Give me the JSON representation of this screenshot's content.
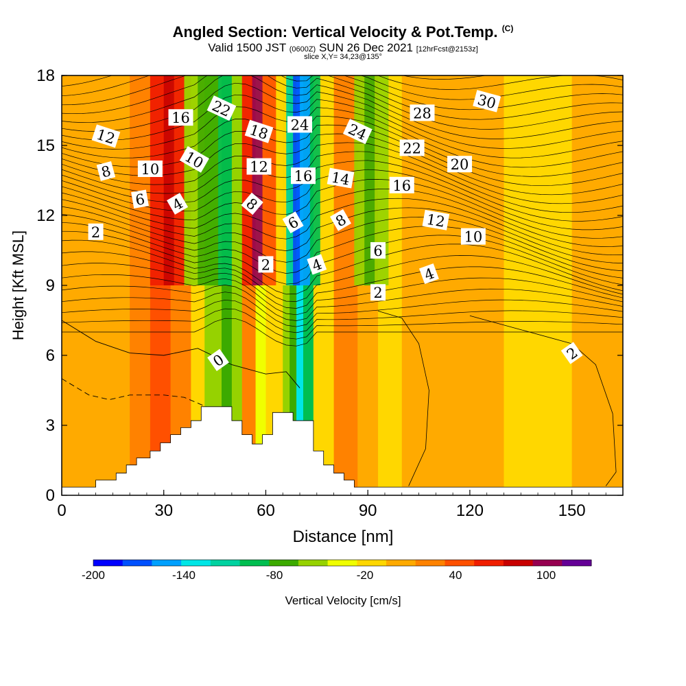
{
  "header": {
    "title_main": "Angled Section: Vertical Velocity & Pot.Temp.",
    "title_copyright": "(C)",
    "line2_a": "Valid 1500 JST",
    "line2_b": "(0600Z)",
    "line2_c": "SUN 26 Dec 2021",
    "line2_d": "[12hrFcst@2153z]",
    "line3": "slice X,Y= 34,23@135°"
  },
  "chart_data": {
    "type": "heatmap",
    "xlabel": "Distance [nm]",
    "ylabel": "Height [Kft MSL]",
    "xlim": [
      0,
      165
    ],
    "ylim": [
      0,
      18
    ],
    "xticks": [
      "0",
      "30",
      "60",
      "90",
      "120",
      "150"
    ],
    "xtick_values": [
      0,
      30,
      60,
      90,
      120,
      150
    ],
    "yticks": [
      "0",
      "3",
      "6",
      "9",
      "12",
      "15",
      "18"
    ],
    "ytick_values": [
      0,
      3,
      6,
      9,
      12,
      15,
      18
    ],
    "colorbar": {
      "label": "Vertical Velocity [cm/s]",
      "tick_labels": [
        "-200",
        "-140",
        "-80",
        "-20",
        "40",
        "100"
      ],
      "tick_values": [
        -200,
        -140,
        -80,
        -20,
        40,
        100
      ],
      "min": -200,
      "max": 130,
      "colors": [
        "#0000ff",
        "#0050ff",
        "#00a0ff",
        "#00e6e6",
        "#00d2a0",
        "#00be50",
        "#3caa00",
        "#96d200",
        "#f0ff00",
        "#ffd700",
        "#ffaa00",
        "#ff8200",
        "#ff5000",
        "#f01e00",
        "#c80000",
        "#960050",
        "#640096"
      ]
    },
    "velocity_bands": [
      {
        "x": 0,
        "w": 20,
        "c": "#ffaa00"
      },
      {
        "x": 20,
        "w": 6,
        "c": "#ff8200"
      },
      {
        "x": 26,
        "w": 6,
        "c": "#ff5000"
      },
      {
        "x": 32,
        "w": 6,
        "c": "#ff8200"
      },
      {
        "x": 38,
        "w": 4,
        "c": "#ffd700"
      },
      {
        "x": 42,
        "w": 5,
        "c": "#96d200"
      },
      {
        "x": 47,
        "w": 3,
        "c": "#3caa00"
      },
      {
        "x": 50,
        "w": 3,
        "c": "#96d200"
      },
      {
        "x": 53,
        "w": 4,
        "c": "#ff8200"
      },
      {
        "x": 57,
        "w": 3,
        "c": "#f0ff00"
      },
      {
        "x": 60,
        "w": 5,
        "c": "#ffd700"
      },
      {
        "x": 65,
        "w": 2,
        "c": "#96d200"
      },
      {
        "x": 67,
        "w": 2,
        "c": "#3caa00"
      },
      {
        "x": 69,
        "w": 2,
        "c": "#00e6e6"
      },
      {
        "x": 71,
        "w": 3,
        "c": "#00be50"
      },
      {
        "x": 74,
        "w": 6,
        "c": "#ffd700"
      },
      {
        "x": 80,
        "w": 7,
        "c": "#ff8200"
      },
      {
        "x": 87,
        "w": 6,
        "c": "#ffaa00"
      },
      {
        "x": 93,
        "w": 7,
        "c": "#ffd700"
      },
      {
        "x": 100,
        "w": 30,
        "c": "#ffaa00"
      },
      {
        "x": 130,
        "w": 20,
        "c": "#ffd700"
      },
      {
        "x": 150,
        "w": 15,
        "c": "#ffaa00"
      }
    ],
    "upper_bands": [
      {
        "x": 26,
        "w": 4,
        "c": "#f01e00"
      },
      {
        "x": 30,
        "w": 3,
        "c": "#c80000"
      },
      {
        "x": 33,
        "w": 3,
        "c": "#f01e00"
      },
      {
        "x": 36,
        "w": 4,
        "c": "#96d200"
      },
      {
        "x": 40,
        "w": 6,
        "c": "#3caa00"
      },
      {
        "x": 46,
        "w": 4,
        "c": "#00be50"
      },
      {
        "x": 50,
        "w": 3,
        "c": "#96d200"
      },
      {
        "x": 53,
        "w": 3,
        "c": "#f01e00"
      },
      {
        "x": 56,
        "w": 3,
        "c": "#960050"
      },
      {
        "x": 59,
        "w": 4,
        "c": "#ff5000"
      },
      {
        "x": 63,
        "w": 3,
        "c": "#ffd700"
      },
      {
        "x": 66,
        "w": 2,
        "c": "#00d2a0"
      },
      {
        "x": 68,
        "w": 2,
        "c": "#0050ff"
      },
      {
        "x": 70,
        "w": 3,
        "c": "#00a0ff"
      },
      {
        "x": 73,
        "w": 3,
        "c": "#00be50"
      },
      {
        "x": 76,
        "w": 4,
        "c": "#ffd700"
      },
      {
        "x": 80,
        "w": 6,
        "c": "#ff8200"
      },
      {
        "x": 86,
        "w": 3,
        "c": "#96d200"
      },
      {
        "x": 89,
        "w": 3,
        "c": "#3caa00"
      },
      {
        "x": 92,
        "w": 4,
        "c": "#96d200"
      }
    ],
    "terrain": [
      [
        0,
        0.35
      ],
      [
        10,
        0.35
      ],
      [
        10,
        0.65
      ],
      [
        16,
        0.65
      ],
      [
        16,
        0.95
      ],
      [
        19,
        0.95
      ],
      [
        19,
        1.3
      ],
      [
        22,
        1.3
      ],
      [
        22,
        1.6
      ],
      [
        26,
        1.6
      ],
      [
        26,
        1.9
      ],
      [
        29,
        1.9
      ],
      [
        29,
        2.25
      ],
      [
        32,
        2.25
      ],
      [
        32,
        2.6
      ],
      [
        35,
        2.6
      ],
      [
        35,
        2.9
      ],
      [
        38,
        2.9
      ],
      [
        38,
        3.2
      ],
      [
        41,
        3.2
      ],
      [
        41,
        3.8
      ],
      [
        50,
        3.8
      ],
      [
        50,
        3.2
      ],
      [
        53,
        3.2
      ],
      [
        53,
        2.6
      ],
      [
        56,
        2.6
      ],
      [
        56,
        2.2
      ],
      [
        59,
        2.2
      ],
      [
        59,
        2.6
      ],
      [
        62,
        2.6
      ],
      [
        62,
        3.55
      ],
      [
        68,
        3.55
      ],
      [
        68,
        3.2
      ],
      [
        74,
        3.2
      ],
      [
        74,
        1.9
      ],
      [
        77,
        1.9
      ],
      [
        77,
        1.3
      ],
      [
        80,
        1.3
      ],
      [
        80,
        0.95
      ],
      [
        83,
        0.95
      ],
      [
        83,
        0.65
      ],
      [
        86,
        0.65
      ],
      [
        86,
        0.35
      ],
      [
        165,
        0.35
      ]
    ],
    "contour_labels": [
      {
        "text": "2",
        "x": 10,
        "y": 11.3,
        "r": 0
      },
      {
        "text": "6",
        "x": 23,
        "y": 12.7,
        "r": -10
      },
      {
        "text": "8",
        "x": 13,
        "y": 13.9,
        "r": -15
      },
      {
        "text": "12",
        "x": 13,
        "y": 15.4,
        "r": 18
      },
      {
        "text": "10",
        "x": 26,
        "y": 14.0,
        "r": 0
      },
      {
        "text": "4",
        "x": 34,
        "y": 12.5,
        "r": -30
      },
      {
        "text": "16",
        "x": 35,
        "y": 16.2,
        "r": 0
      },
      {
        "text": "10",
        "x": 39,
        "y": 14.4,
        "r": 30
      },
      {
        "text": "22",
        "x": 47,
        "y": 16.6,
        "r": 25
      },
      {
        "text": "0",
        "x": 46,
        "y": 5.8,
        "r": -35
      },
      {
        "text": "18",
        "x": 58,
        "y": 15.6,
        "r": 18
      },
      {
        "text": "12",
        "x": 58,
        "y": 14.1,
        "r": 0
      },
      {
        "text": "8",
        "x": 56,
        "y": 12.5,
        "r": 40
      },
      {
        "text": "2",
        "x": 60,
        "y": 9.9,
        "r": 0
      },
      {
        "text": "24",
        "x": 70,
        "y": 15.9,
        "r": 0
      },
      {
        "text": "16",
        "x": 71,
        "y": 13.7,
        "r": 0
      },
      {
        "text": "6",
        "x": 68,
        "y": 11.7,
        "r": -30
      },
      {
        "text": "4",
        "x": 75,
        "y": 9.9,
        "r": -20
      },
      {
        "text": "24",
        "x": 87,
        "y": 15.6,
        "r": 25
      },
      {
        "text": "14",
        "x": 82,
        "y": 13.6,
        "r": 10
      },
      {
        "text": "8",
        "x": 82,
        "y": 11.8,
        "r": -30
      },
      {
        "text": "6",
        "x": 93,
        "y": 10.5,
        "r": 0
      },
      {
        "text": "2",
        "x": 93,
        "y": 8.7,
        "r": 0
      },
      {
        "text": "28",
        "x": 106,
        "y": 16.4,
        "r": 0
      },
      {
        "text": "22",
        "x": 103,
        "y": 14.9,
        "r": 0
      },
      {
        "text": "16",
        "x": 100,
        "y": 13.3,
        "r": 0
      },
      {
        "text": "12",
        "x": 110,
        "y": 11.8,
        "r": 10
      },
      {
        "text": "4",
        "x": 108,
        "y": 9.5,
        "r": -20
      },
      {
        "text": "30",
        "x": 125,
        "y": 16.9,
        "r": 15
      },
      {
        "text": "20",
        "x": 117,
        "y": 14.2,
        "r": 0
      },
      {
        "text": "10",
        "x": 121,
        "y": 11.1,
        "r": 0
      },
      {
        "text": "2",
        "x": 150,
        "y": 6.1,
        "r": -35
      }
    ]
  }
}
